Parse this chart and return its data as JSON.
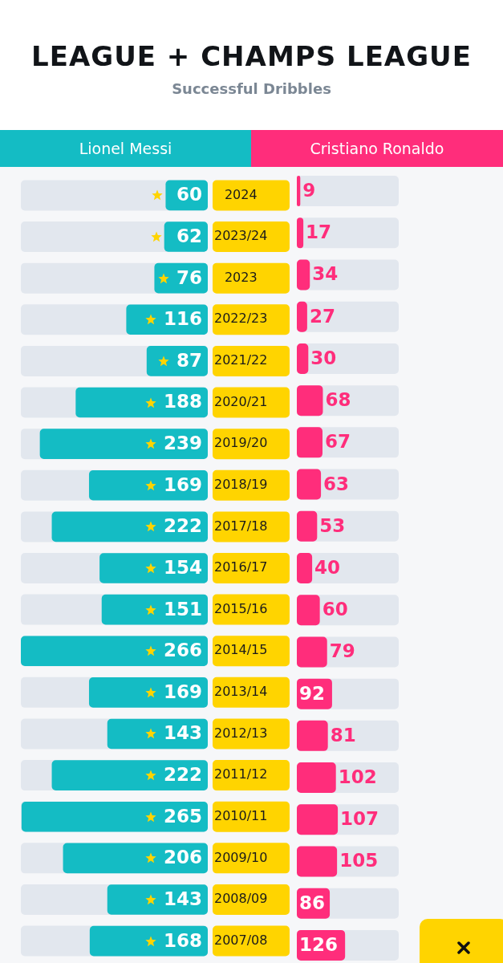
{
  "chart_data": [
    {
      "type": "bar",
      "orientation": "horizontal",
      "title": "LEAGUE + CHAMPS LEAGUE",
      "subtitle": "Successful Dribbles",
      "legend": "top",
      "data_labels": true,
      "categories": [
        "2024",
        "2023/24",
        "2023",
        "2022/23",
        "2021/22",
        "2020/21",
        "2019/20",
        "2018/19",
        "2017/18",
        "2016/17",
        "2015/16",
        "2014/15",
        "2013/14",
        "2012/13",
        "2011/12",
        "2010/11",
        "2009/10",
        "2008/09",
        "2007/08"
      ],
      "series": [
        {
          "name": "Lionel Messi",
          "color": "#14bcc4",
          "values": [
            60,
            62,
            76,
            116,
            87,
            188,
            239,
            169,
            222,
            154,
            151,
            266,
            169,
            143,
            222,
            265,
            206,
            143,
            168
          ]
        }
      ]
    },
    {
      "type": "bar",
      "orientation": "horizontal",
      "legend": "top",
      "data_labels": true,
      "tick_labels": false,
      "categories": [
        "2024",
        "2023/24",
        "2023",
        "2022/23",
        "2021/22",
        "2020/21",
        "2019/20",
        "2018/19",
        "2017/18",
        "2016/17",
        "2015/16",
        "2014/15",
        "2013/14",
        "2012/13",
        "2011/12",
        "2010/11",
        "2009/10",
        "2008/09",
        "2007/08"
      ],
      "series": [
        {
          "name": "Cristiano Ronaldo",
          "color": "#ff2d7b",
          "values": [
            9,
            17,
            34,
            27,
            30,
            68,
            67,
            63,
            53,
            40,
            60,
            79,
            92,
            81,
            102,
            107,
            105,
            86,
            126
          ]
        }
      ]
    }
  ]
}
